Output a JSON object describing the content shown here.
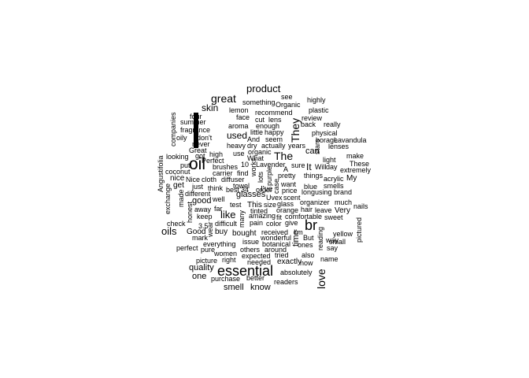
{
  "words": {
    "product": "product",
    "great": "great",
    "skin": "skin",
    "They": "They",
    "bar": "|",
    "oil": "oil",
    "The": "The",
    "br": "br",
    "essential": "essential",
    "oils": "oils",
    "like": "like",
    "love": "love",
    "used": "used",
    "glasses": "glasses",
    "good": "good",
    "quality": "quality",
    "can": "can",
    "It": "It",
    "time": "time",
    "see": "see",
    "highly": "highly",
    "something": "something",
    "Organic": "Organic",
    "plastic": "plastic",
    "lemon": "lemon",
    "recommend": "recommend",
    "review": "review",
    "four": "four",
    "face": "face",
    "cut": "cut",
    "lens": "lens",
    "back": "back",
    "really": "really",
    "summer": "summer",
    "aroma": "aroma",
    "enough": "enough",
    "fragrance": "fragrance",
    "little": "little",
    "happy": "happy",
    "physical": "physical",
    "don_t": "don't",
    "And": "And",
    "seem": "seem",
    "borage": "borage",
    "oily": "oily",
    "heavy": "heavy",
    "dry": "dry",
    "actually": "actually",
    "years": "years",
    "lenses": "lenses",
    "never": "never",
    "organic": "organic",
    "Lavandula": "Lavandula",
    "companies": "companies",
    "Great": "Great",
    "use": "use",
    "What": "What",
    "make": "make",
    "looking": "looking",
    "got": "got",
    "high": "high",
    "Perfect": "Perfect",
    "10": "10",
    "Lavender": "Lavender",
    "I_ve": "I've",
    "light": "light",
    "put": "put",
    "brushes": "brushes",
    "A": "A",
    "sure": "sure",
    "Will": "Will",
    "day": "day",
    "These": "These",
    "coconut": "coconut",
    "carrier": "carrier",
    "find": "find",
    "things": "things",
    "extremely": "extremely",
    "nice": "nice",
    "Nice": "Nice",
    "cloth": "cloth",
    "diffuser": "diffuser",
    "acrylic": "acrylic",
    "My": "My",
    "get": "get",
    "just": "just",
    "towel": "towel",
    "pretty": "pretty",
    "different": "different",
    "think": "think",
    "best": "best",
    "34": "34",
    "order": "order",
    "blue": "blue",
    "want": "want",
    "smells": "smells",
    "price": "price",
    "long": "long",
    "using": "using",
    "brand": "brand",
    "well": "well",
    "many": "many",
    "Uvex": "Uvex",
    "scent": "scent",
    "much": "much",
    "test": "test",
    "This": "This",
    "size": "size",
    "glass": "glass",
    "organizer": "organizer",
    "nails": "nails",
    "far": "far",
    "away": "away",
    "orange": "orange",
    "hair": "hair",
    "leave": "leave",
    "Very": "Very",
    "keep": "keep",
    "amazing": "amazing",
    "fit": "fit",
    "comfortable": "comfortable",
    "sweet": "sweet",
    "check": "check",
    "35": "3.5",
    "difficult": "difficult",
    "pain": "pain",
    "color": "color",
    "give": "give",
    "Good": "Good",
    "buy": "buy",
    "bought": "bought",
    "received": "received",
    "I_m": "I'm",
    "yellow": "yellow",
    "mark": "mark",
    "wonderful": "wonderful",
    "But": "But",
    "way": "way",
    "everything": "everything",
    "issue": "issue",
    "botanical": "botanical",
    "ones": "ones",
    "small": "small",
    "perfect": "perfect",
    "pure": "pure",
    "others": "others",
    "around": "around",
    "say": "say",
    "women": "women",
    "expected": "expected",
    "tried": "tried",
    "also": "also",
    "picture": "picture",
    "right": "right",
    "needed": "needed",
    "exactly": "exactly",
    "name": "name",
    "now": "now",
    "absolutely": "absolutely",
    "one": "one",
    "purchase": "purchase",
    "better": "better",
    "readers": "readers",
    "smell": "smell",
    "know": "know",
    "tinted": "tinted",
    "Angustifolia": "Angustifolia",
    "exchange": "exchange",
    "made": "made",
    "honest": "honest",
    "wear": "wear",
    "works": "works",
    "lots": "lots",
    "purple": "purple",
    "case": "case",
    "stars": "stars",
    "reading": "reading",
    "pictured": "pictured"
  }
}
